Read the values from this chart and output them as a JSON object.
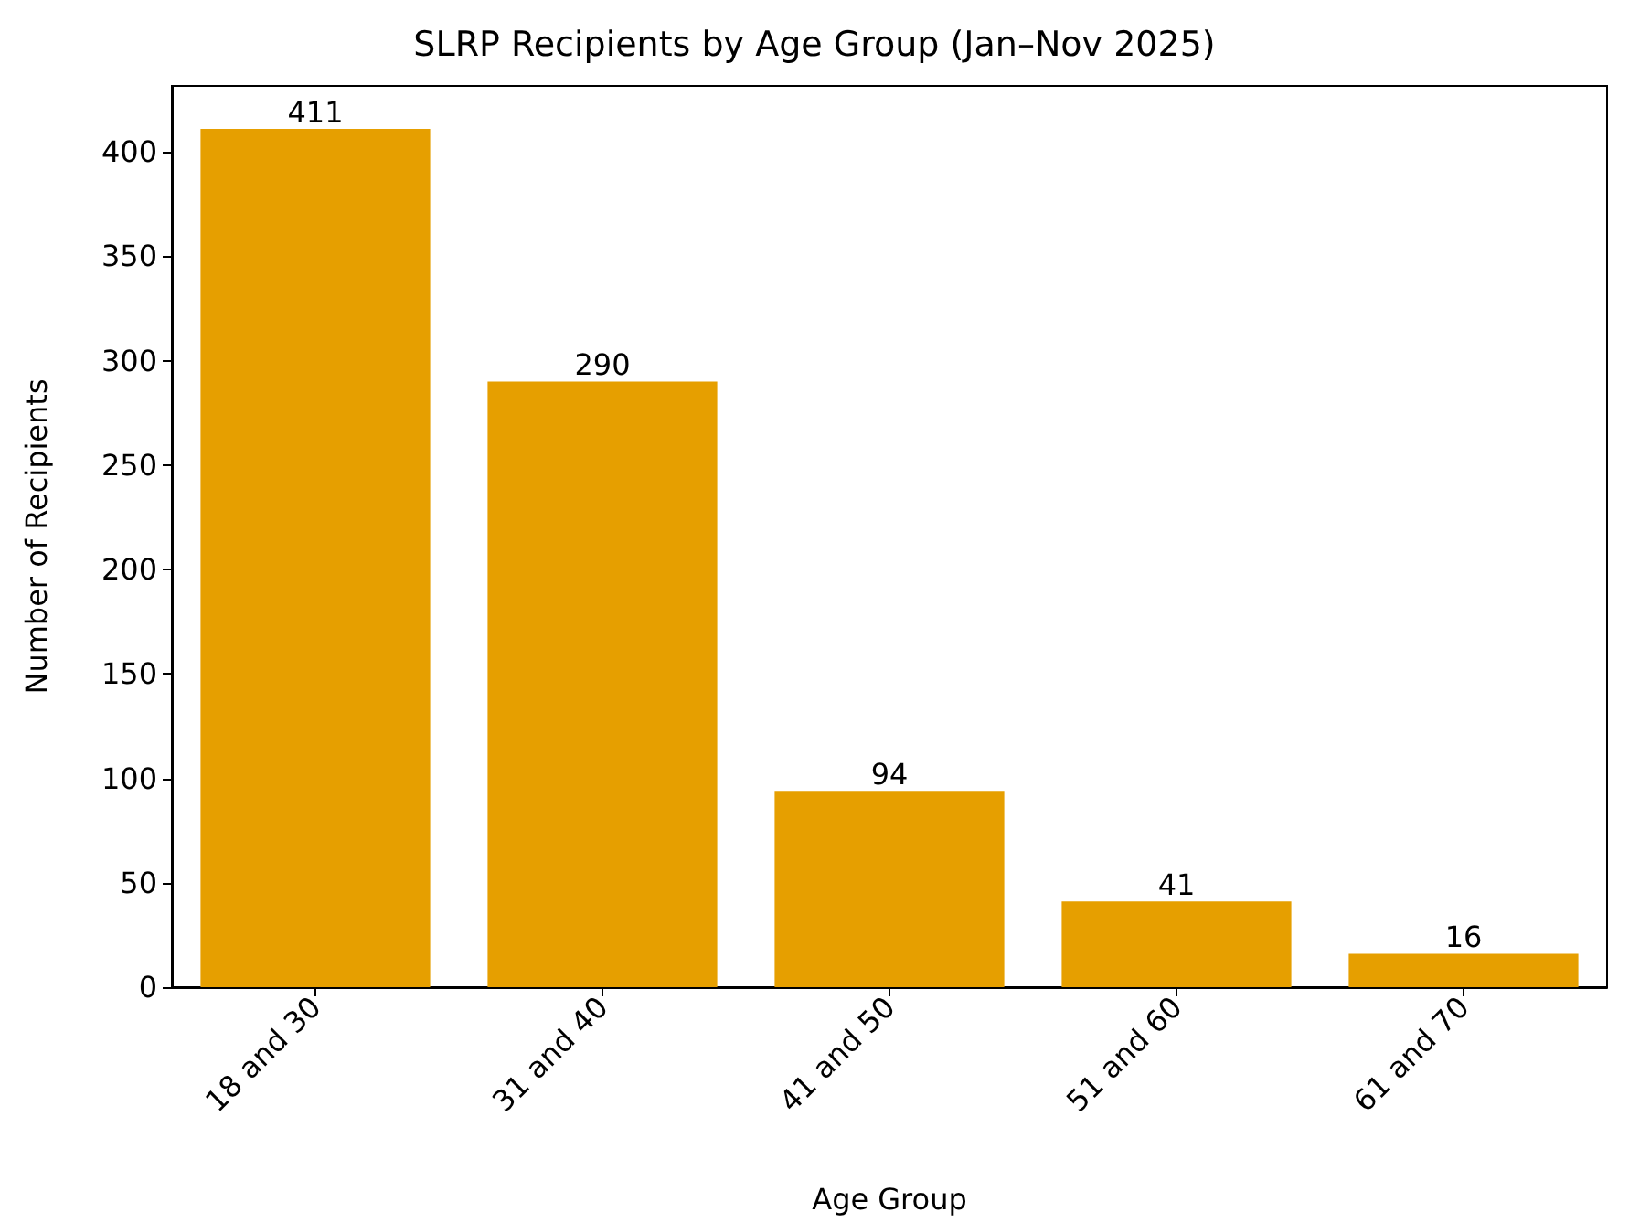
{
  "chart_data": {
    "type": "bar",
    "title": "SLRP Recipients by Age Group (Jan–Nov 2025)",
    "xlabel": "Age Group",
    "ylabel": "Number of Recipients",
    "categories": [
      "18 and 30",
      "31 and 40",
      "41 and 50",
      "51 and 60",
      "61 and 70"
    ],
    "values": [
      411,
      290,
      94,
      41,
      16
    ],
    "color": "#e69f00",
    "ylim": [
      0,
      431.6
    ],
    "yticks": [
      0,
      50,
      100,
      150,
      200,
      250,
      300,
      350,
      400
    ],
    "grid": false,
    "data_labels": true
  }
}
